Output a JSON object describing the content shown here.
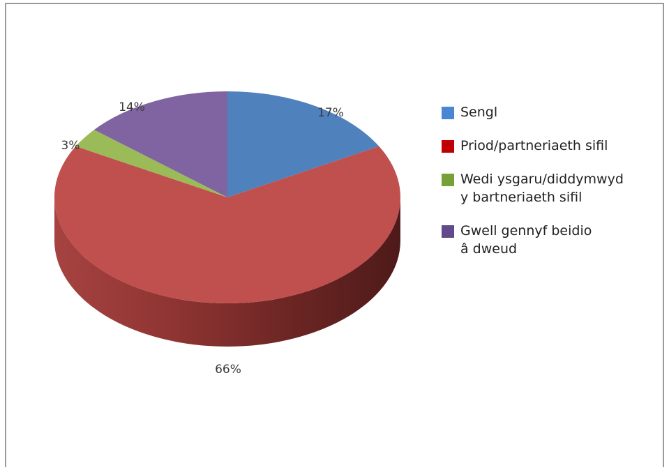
{
  "chart_data": {
    "type": "pie",
    "style": "3d",
    "categories": [
      "Sengl",
      "Priod/partneriaeth sifil",
      "Wedi ysgaru/diddymwyd y bartneriaeth sifil",
      "Gwell gennyf beidio â dweud"
    ],
    "values": [
      17,
      66,
      3,
      14
    ],
    "data_labels": [
      "17%",
      "66%",
      "3%",
      "14%"
    ],
    "colors": [
      "#4f81bd",
      "#c0504d",
      "#9bbb59",
      "#8064a2"
    ],
    "legend_colors": [
      "#4a86d4",
      "#c00000",
      "#77a037",
      "#604a8b"
    ],
    "legend_position": "right",
    "legend": [
      {
        "lines": [
          "Sengl"
        ]
      },
      {
        "lines": [
          "Priod/partneriaeth sifil"
        ]
      },
      {
        "lines": [
          "Wedi ysgaru/diddymwyd",
          "y bartneriaeth sifil"
        ]
      },
      {
        "lines": [
          "Gwell gennyf beidio",
          "â dweud"
        ]
      }
    ]
  }
}
